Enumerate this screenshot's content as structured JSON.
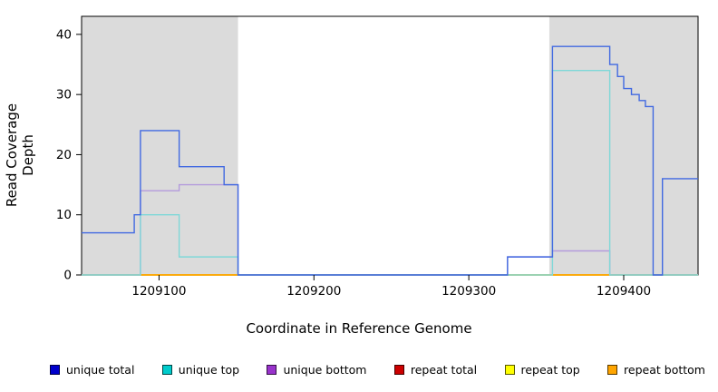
{
  "chart_data": {
    "type": "line",
    "title": "",
    "xlabel": "Coordinate in Reference Genome",
    "ylabel": "Read Coverage Depth",
    "x_range": [
      1209050,
      1209448
    ],
    "y_range": [
      0,
      43
    ],
    "x_ticks": [
      1209100,
      1209200,
      1209300,
      1209400
    ],
    "y_ticks": [
      0,
      10,
      20,
      30,
      40
    ],
    "grid": false,
    "shaded_regions": [
      {
        "name": "left-repeat-region",
        "x0": 1209050,
        "x1": 1209151,
        "color": "#DBDBDB"
      },
      {
        "name": "right-repeat-region",
        "x0": 1209352,
        "x1": 1209448,
        "color": "#DBDBDB"
      }
    ],
    "series": [
      {
        "name": "repeat total",
        "color": "#CC0000",
        "paths": [
          [
            [
              1209050,
              0
            ],
            [
              1209448,
              0
            ]
          ]
        ]
      },
      {
        "name": "repeat top",
        "color": "#FFFF00",
        "paths": [
          [
            [
              1209050,
              0
            ],
            [
              1209448,
              0
            ]
          ]
        ]
      },
      {
        "name": "repeat bottom",
        "color": "#FFA500",
        "paths": [
          [
            [
              1209088,
              0
            ],
            [
              1209151,
              0
            ]
          ],
          [
            [
              1209354,
              0
            ],
            [
              1209448,
              0
            ]
          ]
        ]
      },
      {
        "name": "unique bottom",
        "color": "#B49BDC",
        "paths": [
          [
            [
              1209050,
              0
            ],
            [
              1209088,
              14
            ],
            [
              1209113,
              15
            ],
            [
              1209151,
              0
            ],
            [
              1209325,
              3
            ],
            [
              1209354,
              4
            ],
            [
              1209391,
              0
            ],
            [
              1209448,
              0
            ]
          ]
        ]
      },
      {
        "name": "unique top",
        "color": "#7FD8D8",
        "paths": [
          [
            [
              1209050,
              0
            ],
            [
              1209088,
              10
            ],
            [
              1209113,
              3
            ],
            [
              1209151,
              0
            ],
            [
              1209354,
              34
            ],
            [
              1209391,
              0
            ],
            [
              1209448,
              0
            ]
          ]
        ]
      },
      {
        "name": "unique total",
        "color": "#4169E1",
        "paths": [
          [
            [
              1209050,
              7
            ],
            [
              1209084,
              10
            ],
            [
              1209088,
              24
            ],
            [
              1209113,
              18
            ],
            [
              1209142,
              15
            ],
            [
              1209151,
              0
            ],
            [
              1209325,
              3
            ],
            [
              1209354,
              38
            ],
            [
              1209391,
              35
            ],
            [
              1209396,
              33
            ],
            [
              1209400,
              31
            ],
            [
              1209405,
              30
            ],
            [
              1209410,
              29
            ],
            [
              1209414,
              28
            ],
            [
              1209419,
              0
            ],
            [
              1209425,
              16
            ],
            [
              1209448,
              16
            ]
          ]
        ]
      }
    ]
  },
  "legend": {
    "items": [
      {
        "label": "unique total",
        "color": "#0000CC"
      },
      {
        "label": "unique top",
        "color": "#00CCCC"
      },
      {
        "label": "unique bottom",
        "color": "#9933CC"
      },
      {
        "label": "repeat total",
        "color": "#CC0000"
      },
      {
        "label": "repeat top",
        "color": "#FFFF00"
      },
      {
        "label": "repeat bottom",
        "color": "#FFA500"
      }
    ]
  }
}
